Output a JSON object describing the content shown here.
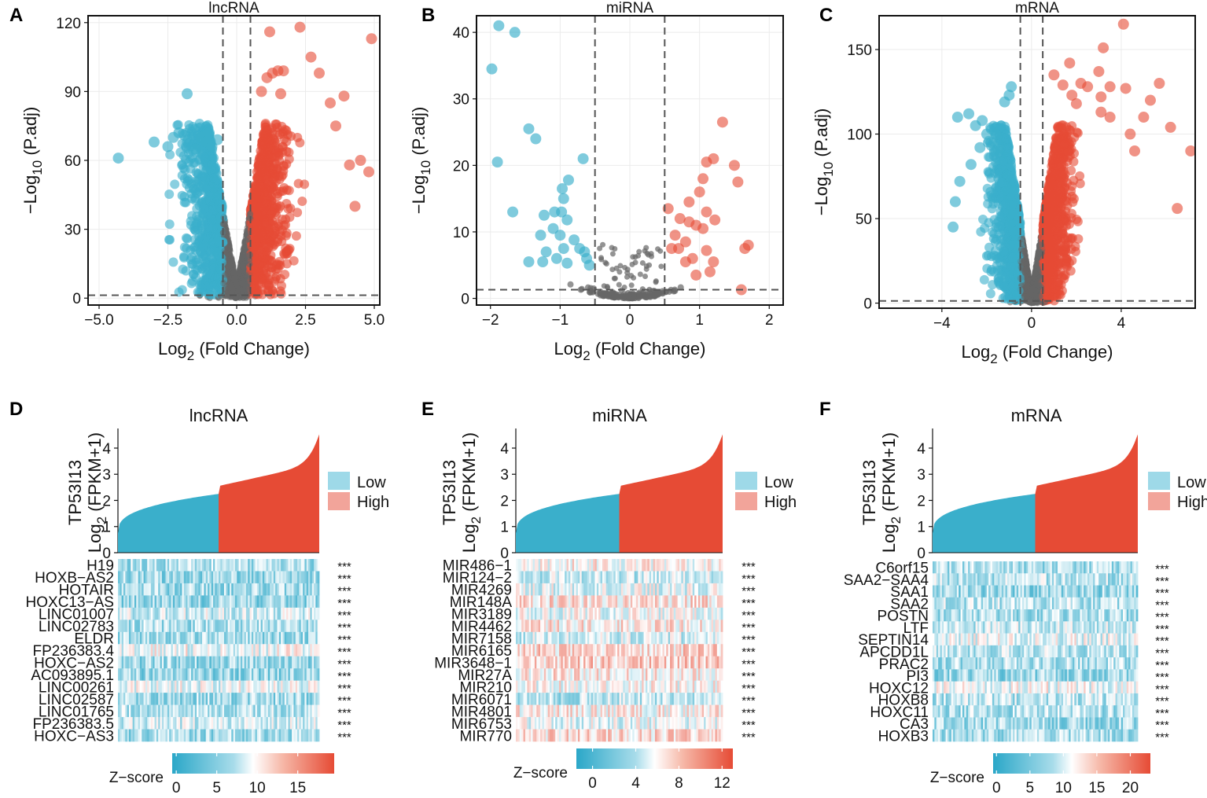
{
  "figure": {
    "panels": [
      "A",
      "B",
      "C",
      "D",
      "E",
      "F"
    ],
    "colors": {
      "low": "#3AAFCB",
      "high": "#E64B35",
      "ns": "#666666",
      "lowLegend": "#9ED9E8",
      "highLegend": "#F2A49A"
    }
  },
  "chart_data": [
    {
      "panel": "A",
      "type": "scatter",
      "title": "lncRNA",
      "xlabel_pre": "Log",
      "xlabel_sub": "2",
      "xlabel_post": " (Fold Change)",
      "ylabel_pre": "−Log",
      "ylabel_sub": "10",
      "ylabel_post": " (P.adj)",
      "xlim": [
        -5.4,
        5.2
      ],
      "ylim": [
        -3,
        123
      ],
      "xticks": [
        -5,
        -2.5,
        0,
        2.5,
        5
      ],
      "xtick_labels": [
        "−5.0",
        "−2.5",
        "0.0",
        "2.5",
        "5.0"
      ],
      "yticks": [
        0,
        30,
        60,
        90,
        120
      ],
      "ytick_labels": [
        "0",
        "30",
        "60",
        "90",
        "120"
      ],
      "vlines": [
        -0.5,
        0.5
      ],
      "hline": 1.3,
      "highlights_low": [
        [
          -4.3,
          61
        ],
        [
          -3.0,
          68
        ],
        [
          -2.5,
          66
        ],
        [
          -2.3,
          70
        ],
        [
          -2.1,
          72
        ],
        [
          -1.9,
          71
        ],
        [
          -1.8,
          89
        ],
        [
          -1.5,
          65
        ],
        [
          -1.3,
          70
        ],
        [
          -1.1,
          68
        ],
        [
          -1.0,
          72
        ],
        [
          -0.9,
          66
        ],
        [
          -0.7,
          69
        ]
      ],
      "highlights_high": [
        [
          0.9,
          90
        ],
        [
          1.1,
          96
        ],
        [
          1.3,
          98
        ],
        [
          1.5,
          99
        ],
        [
          1.7,
          99
        ],
        [
          1.2,
          116
        ],
        [
          1.6,
          89
        ],
        [
          2.3,
          118
        ],
        [
          2.7,
          105
        ],
        [
          3.0,
          98
        ],
        [
          3.6,
          75
        ],
        [
          3.4,
          85
        ],
        [
          3.9,
          88
        ],
        [
          4.9,
          113
        ],
        [
          4.5,
          60
        ],
        [
          4.8,
          55
        ],
        [
          4.3,
          40
        ],
        [
          4.1,
          58
        ]
      ]
    },
    {
      "panel": "B",
      "type": "scatter",
      "title": "miRNA",
      "xlabel_pre": "Log",
      "xlabel_sub": "2",
      "xlabel_post": " (Fold Change)",
      "ylabel_pre": "−Log",
      "ylabel_sub": "10",
      "ylabel_post": " (P.adj)",
      "xlim": [
        -2.2,
        2.2
      ],
      "ylim": [
        -1,
        42.5
      ],
      "xticks": [
        -2,
        -1,
        0,
        1,
        2
      ],
      "xtick_labels": [
        "−2",
        "−1",
        "0",
        "1",
        "2"
      ],
      "yticks": [
        0,
        10,
        20,
        30,
        40
      ],
      "ytick_labels": [
        "0",
        "10",
        "20",
        "30",
        "40"
      ],
      "vlines": [
        -0.5,
        0.5
      ],
      "hline": 1.3,
      "highlights_low": [
        [
          -1.98,
          34.5
        ],
        [
          -1.88,
          41
        ],
        [
          -1.65,
          40
        ],
        [
          -1.9,
          20.5
        ],
        [
          -1.45,
          25.5
        ],
        [
          -1.35,
          24
        ],
        [
          -1.68,
          13
        ],
        [
          -0.97,
          16.5
        ],
        [
          -0.88,
          17.8
        ],
        [
          -0.95,
          15
        ],
        [
          -0.67,
          21
        ],
        [
          -1.23,
          12.5
        ],
        [
          -1.08,
          13
        ],
        [
          -0.98,
          13
        ],
        [
          -0.9,
          11.8
        ],
        [
          -1.28,
          9.5
        ],
        [
          -1.1,
          10.5
        ],
        [
          -1.0,
          9.5
        ],
        [
          -0.8,
          8.8
        ],
        [
          -0.95,
          7.5
        ],
        [
          -1.05,
          6
        ],
        [
          -1.2,
          7
        ],
        [
          -1.25,
          5.5
        ],
        [
          -0.9,
          5.3
        ],
        [
          -1.45,
          5.5
        ],
        [
          -0.72,
          7.5
        ],
        [
          -0.65,
          7
        ],
        [
          -0.62,
          6
        ],
        [
          -0.58,
          5
        ]
      ],
      "highlights_high": [
        [
          1.33,
          26.5
        ],
        [
          1.1,
          20.5
        ],
        [
          1.2,
          21
        ],
        [
          1.5,
          20
        ],
        [
          1.05,
          18
        ],
        [
          1.55,
          17.5
        ],
        [
          0.55,
          13.5
        ],
        [
          0.85,
          14.5
        ],
        [
          1.0,
          16
        ],
        [
          1.1,
          13
        ],
        [
          1.22,
          11.8
        ],
        [
          0.72,
          12
        ],
        [
          0.85,
          11.5
        ],
        [
          0.95,
          11
        ],
        [
          1.05,
          10.5
        ],
        [
          0.65,
          9.5
        ],
        [
          0.8,
          8.5
        ],
        [
          1.7,
          8
        ],
        [
          1.65,
          7.5
        ],
        [
          1.1,
          7.2
        ],
        [
          0.6,
          7.5
        ],
        [
          0.7,
          7.5
        ],
        [
          0.9,
          6
        ],
        [
          1.2,
          5.5
        ],
        [
          1.6,
          1.3
        ],
        [
          0.95,
          3.5
        ],
        [
          1.15,
          4
        ],
        [
          0.8,
          5.5
        ]
      ]
    },
    {
      "panel": "C",
      "type": "scatter",
      "title": "mRNA",
      "xlabel_pre": "Log",
      "xlabel_sub": "2",
      "xlabel_post": " (Fold Change)",
      "ylabel_pre": "−Log",
      "ylabel_sub": "10",
      "ylabel_post": " (P.adj)",
      "xlim": [
        -6.8,
        7.3
      ],
      "ylim": [
        -3,
        170
      ],
      "xticks": [
        -4,
        0,
        4
      ],
      "xtick_labels": [
        "−4",
        "0",
        "4"
      ],
      "yticks": [
        0,
        50,
        100,
        150
      ],
      "ytick_labels": [
        "0",
        "50",
        "100",
        "150"
      ],
      "vlines": [
        -0.5,
        0.5
      ],
      "hline": 1.3,
      "highlights_low": [
        [
          -3.3,
          110
        ],
        [
          -2.8,
          112
        ],
        [
          -2.5,
          105
        ],
        [
          -2.2,
          108
        ],
        [
          -2.0,
          100
        ],
        [
          -1.8,
          95
        ],
        [
          -1.6,
          100
        ],
        [
          -1.2,
          119
        ],
        [
          -1.0,
          123
        ],
        [
          -0.9,
          128
        ],
        [
          -1.5,
          91
        ],
        [
          -2.3,
          92
        ],
        [
          -3.2,
          72
        ],
        [
          -3.4,
          60
        ],
        [
          -3.5,
          45
        ],
        [
          -2.7,
          82
        ]
      ],
      "highlights_high": [
        [
          1.0,
          135
        ],
        [
          1.4,
          129
        ],
        [
          1.8,
          123
        ],
        [
          2.0,
          118
        ],
        [
          2.5,
          128
        ],
        [
          3.0,
          137
        ],
        [
          3.1,
          122
        ],
        [
          3.2,
          151
        ],
        [
          3.5,
          128
        ],
        [
          3.1,
          113
        ],
        [
          3.5,
          110
        ],
        [
          4.1,
          165
        ],
        [
          4.2,
          127
        ],
        [
          5.0,
          110
        ],
        [
          5.3,
          120
        ],
        [
          5.7,
          130
        ],
        [
          6.2,
          104
        ],
        [
          7.1,
          90
        ],
        [
          6.5,
          56
        ],
        [
          4.4,
          100
        ],
        [
          4.6,
          90
        ],
        [
          1.7,
          142
        ],
        [
          2.2,
          130
        ]
      ]
    },
    {
      "panel": "D",
      "type": "heatmap",
      "title": "lncRNA",
      "ylabel_line1": "TP53I13",
      "ylabel_pre": "Log",
      "ylabel_sub": "2",
      "ylabel_post": " (FPKM+1)",
      "bar_yticks": [
        0,
        1,
        2,
        3,
        4
      ],
      "bar_ylim": [
        0,
        4.6
      ],
      "bar_range": [
        0.75,
        4.55
      ],
      "split": 0.5,
      "legend": [
        "Low",
        "High"
      ],
      "genes": [
        "H19",
        "HOXB−AS2",
        "HOTAIR",
        "HOXC13−AS",
        "LINC01007",
        "LINC02783",
        "ELDR",
        "FP236383.4",
        "HOXC−AS2",
        "AC093895.1",
        "LINC00261",
        "LINC02587",
        "LINC01765",
        "FP236383.5",
        "HOXC−AS3"
      ],
      "row_bias": [
        -0.35,
        -0.45,
        -0.4,
        -0.45,
        -0.2,
        -0.35,
        -0.4,
        -0.05,
        -0.45,
        -0.45,
        -0.1,
        -0.4,
        -0.3,
        -0.2,
        -0.4
      ],
      "sig": "***",
      "zscore_label": "Z−score",
      "colorbar_ticks": [
        0,
        5,
        10,
        15
      ],
      "colorbar_labels": [
        "0",
        "5",
        "10",
        "15"
      ],
      "colorbar_range": [
        -0.5,
        19.5
      ]
    },
    {
      "panel": "E",
      "type": "heatmap",
      "title": "miRNA",
      "ylabel_line1": "TP53I13",
      "ylabel_pre": "Log",
      "ylabel_sub": "2",
      "ylabel_post": " (FPKM+1)",
      "bar_yticks": [
        0,
        1,
        2,
        3,
        4
      ],
      "bar_ylim": [
        0,
        4.6
      ],
      "bar_range": [
        0.75,
        4.55
      ],
      "split": 0.5,
      "legend": [
        "Low",
        "High"
      ],
      "genes": [
        "MIR486−1",
        "MIR124−2",
        "MIR4269",
        "MIR148A",
        "MIR3189",
        "MIR4462",
        "MIR7158",
        "MIR6165",
        "MIR3648−1",
        "MIR27A",
        "MIR210",
        "MIR6071",
        "MIR4801",
        "MIR6753",
        "MIR770"
      ],
      "row_bias": [
        0.05,
        -0.25,
        -0.1,
        0.15,
        -0.05,
        0.1,
        -0.2,
        0.2,
        0.25,
        0.1,
        0.0,
        -0.3,
        0.05,
        -0.1,
        0.15
      ],
      "sig": "***",
      "zscore_label": "Z−score",
      "colorbar_ticks": [
        0,
        4,
        8,
        12
      ],
      "colorbar_labels": [
        "0",
        "4",
        "8",
        "12"
      ],
      "colorbar_range": [
        -1.5,
        13
      ]
    },
    {
      "panel": "F",
      "type": "heatmap",
      "title": "mRNA",
      "ylabel_line1": "TP53I13",
      "ylabel_pre": "Log",
      "ylabel_sub": "2",
      "ylabel_post": " (FPKM+1)",
      "bar_yticks": [
        0,
        1,
        2,
        3,
        4
      ],
      "bar_ylim": [
        0,
        4.6
      ],
      "bar_range": [
        0.75,
        4.55
      ],
      "split": 0.5,
      "legend": [
        "Low",
        "High"
      ],
      "genes": [
        "C6orf15",
        "SAA2−SAA4",
        "SAA1",
        "SAA2",
        "POSTN",
        "LTF",
        "SEPTIN14",
        "APCDD1L",
        "PRAC2",
        "PI3",
        "HOXC12",
        "HOXB8",
        "HOXC11",
        "CA3",
        "HOXB3"
      ],
      "row_bias": [
        -0.35,
        -0.3,
        -0.45,
        -0.3,
        -0.35,
        -0.25,
        -0.1,
        -0.3,
        -0.35,
        -0.45,
        -0.05,
        -0.3,
        -0.35,
        -0.4,
        -0.35
      ],
      "sig": "***",
      "zscore_label": "Z−score",
      "colorbar_ticks": [
        0,
        5,
        10,
        15,
        20
      ],
      "colorbar_labels": [
        "0",
        "5",
        "10",
        "15",
        "20"
      ],
      "colorbar_range": [
        -0.5,
        23
      ]
    }
  ]
}
